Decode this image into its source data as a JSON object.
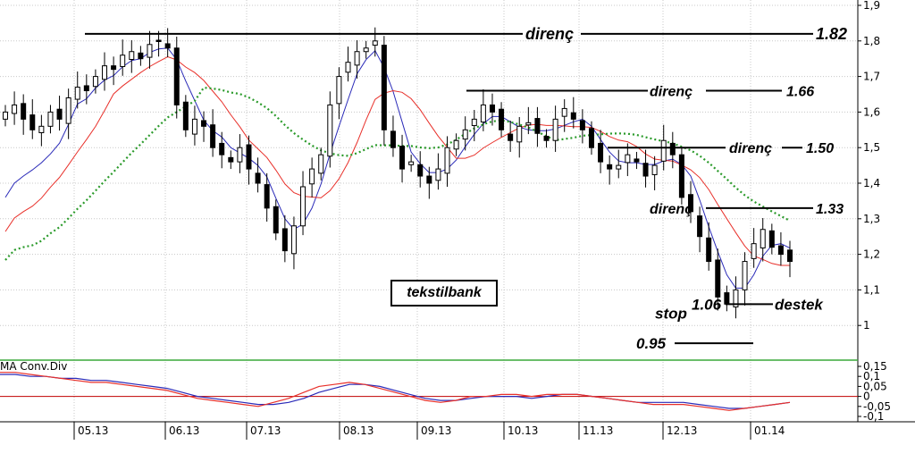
{
  "chart_data": [
    {
      "type": "candlestick",
      "title": "tekstilbank",
      "y_range": [
        0.9,
        1.9
      ],
      "y_ticks": [
        "1,9",
        "1,8",
        "1,7",
        "1,6",
        "1,5",
        "1,4",
        "1,3",
        "1,2",
        "1,1",
        "1"
      ],
      "x_ticks": [
        "05.13",
        "06.13",
        "07.13",
        "08.13",
        "09.13",
        "10.13",
        "11.13",
        "12.13",
        "01.14"
      ],
      "annotations": [
        {
          "text": "direnç",
          "value": "1.82"
        },
        {
          "text": "direnç",
          "value": "1.66"
        },
        {
          "text": "direnç",
          "value": "1.50"
        },
        {
          "text": "direnç",
          "value": "1.33"
        },
        {
          "text": "destek",
          "value": "1.06"
        },
        {
          "text": "stop",
          "value": "0.95"
        }
      ],
      "ohlc_close_approx": [
        1.6,
        1.62,
        1.58,
        1.55,
        1.56,
        1.6,
        1.58,
        1.64,
        1.67,
        1.66,
        1.7,
        1.73,
        1.72,
        1.76,
        1.77,
        1.75,
        1.79,
        1.8,
        1.78,
        1.62,
        1.55,
        1.58,
        1.56,
        1.5,
        1.48,
        1.46,
        1.5,
        1.44,
        1.4,
        1.33,
        1.26,
        1.21,
        1.28,
        1.39,
        1.44,
        1.48,
        1.62,
        1.7,
        1.74,
        1.77,
        1.78,
        1.8,
        1.55,
        1.5,
        1.44,
        1.46,
        1.42,
        1.4,
        1.44,
        1.5,
        1.52,
        1.55,
        1.58,
        1.62,
        1.6,
        1.55,
        1.52,
        1.56,
        1.57,
        1.54,
        1.52,
        1.58,
        1.61,
        1.58,
        1.55,
        1.5,
        1.46,
        1.44,
        1.45,
        1.48,
        1.46,
        1.42,
        1.45,
        1.52,
        1.48,
        1.36,
        1.32,
        1.25,
        1.18,
        1.08,
        1.06,
        1.1,
        1.18,
        1.23,
        1.27,
        1.22,
        1.2,
        1.18
      ],
      "series": [
        {
          "name": "",
          "color": "#2a2ab8"
        },
        {
          "name": "",
          "color": "#e8302a"
        },
        {
          "name": "",
          "color": "#2a9a2a"
        }
      ]
    },
    {
      "type": "line",
      "title": "MA Conv.Div",
      "y_ticks": [
        "0,15",
        "0,1",
        "0,05",
        "0",
        "-0,05",
        "-0,1"
      ],
      "y_range": [
        -0.1,
        0.15
      ],
      "x_ticks": [
        "05.13",
        "06.13",
        "07.13",
        "08.13",
        "09.13",
        "10.13",
        "11.13",
        "12.13",
        "01.14"
      ],
      "series": [
        {
          "name": "",
          "color": "#2a2ab8",
          "values": [
            0.11,
            0.11,
            0.1,
            0.1,
            0.09,
            0.09,
            0.08,
            0.08,
            0.07,
            0.06,
            0.05,
            0.04,
            0.02,
            0.0,
            -0.01,
            -0.02,
            -0.03,
            -0.04,
            -0.04,
            -0.03,
            -0.01,
            0.02,
            0.04,
            0.06,
            0.06,
            0.05,
            0.03,
            0.01,
            -0.01,
            -0.02,
            -0.02,
            -0.01,
            0.0,
            0.0,
            0.0,
            -0.01,
            0.0,
            0.01,
            0.01,
            0.0,
            -0.01,
            -0.02,
            -0.03,
            -0.03,
            -0.03,
            -0.03,
            -0.04,
            -0.05,
            -0.06,
            -0.06,
            -0.05,
            -0.04,
            -0.03
          ]
        },
        {
          "name": "",
          "color": "#e8302a",
          "values": [
            0.12,
            0.12,
            0.11,
            0.1,
            0.09,
            0.08,
            0.07,
            0.07,
            0.06,
            0.05,
            0.04,
            0.03,
            0.01,
            -0.01,
            -0.02,
            -0.03,
            -0.04,
            -0.05,
            -0.03,
            -0.01,
            0.02,
            0.05,
            0.06,
            0.07,
            0.06,
            0.04,
            0.02,
            0.0,
            -0.02,
            -0.03,
            -0.02,
            0.0,
            0.0,
            0.01,
            0.01,
            0.0,
            0.01,
            0.01,
            0.01,
            0.0,
            -0.01,
            -0.02,
            -0.03,
            -0.04,
            -0.04,
            -0.04,
            -0.05,
            -0.06,
            -0.07,
            -0.06,
            -0.05,
            -0.04,
            -0.03
          ]
        }
      ]
    }
  ]
}
